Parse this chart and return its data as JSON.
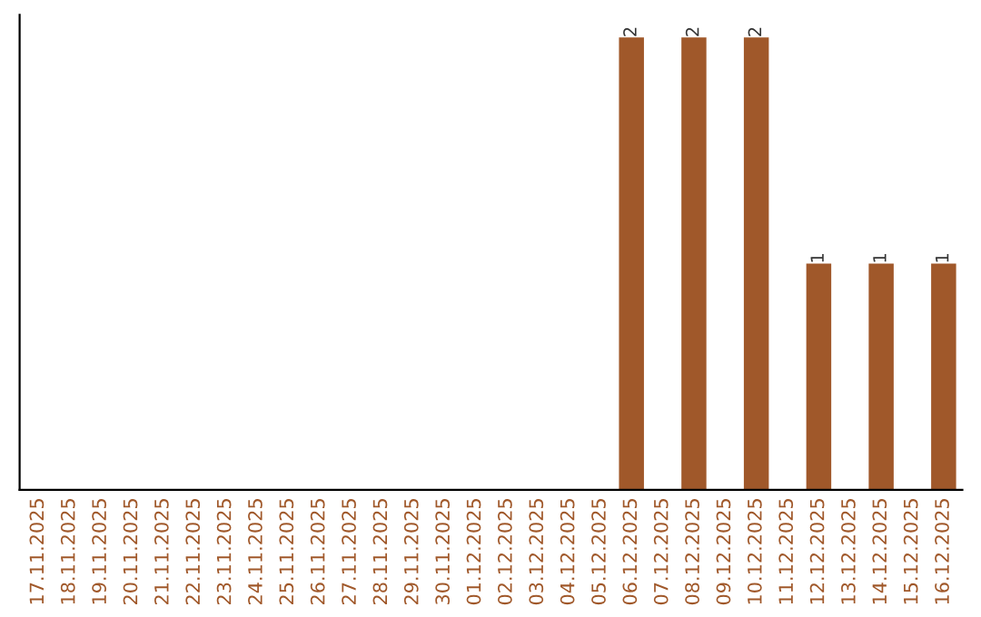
{
  "chart_data": {
    "type": "bar",
    "categories": [
      "17.11.2025",
      "18.11.2025",
      "19.11.2025",
      "20.11.2025",
      "21.11.2025",
      "22.11.2025",
      "23.11.2025",
      "24.11.2025",
      "25.11.2025",
      "26.11.2025",
      "27.11.2025",
      "28.11.2025",
      "29.11.2025",
      "30.11.2025",
      "01.12.2025",
      "02.12.2025",
      "03.12.2025",
      "04.12.2025",
      "05.12.2025",
      "06.12.2025",
      "07.12.2025",
      "08.12.2025",
      "09.12.2025",
      "10.12.2025",
      "11.12.2025",
      "12.12.2025",
      "13.12.2025",
      "14.12.2025",
      "15.12.2025",
      "16.12.2025"
    ],
    "values": [
      null,
      null,
      null,
      null,
      null,
      null,
      null,
      null,
      null,
      null,
      null,
      null,
      null,
      null,
      null,
      null,
      null,
      null,
      null,
      2,
      null,
      2,
      null,
      2,
      null,
      1,
      null,
      1,
      null,
      1
    ],
    "value_labels": [
      null,
      null,
      null,
      null,
      null,
      null,
      null,
      null,
      null,
      null,
      null,
      null,
      null,
      null,
      null,
      null,
      null,
      null,
      null,
      "2",
      null,
      "2",
      null,
      "2",
      null,
      "1",
      null,
      "1",
      null,
      "1"
    ],
    "color": "#a0582a",
    "grid": false
  }
}
